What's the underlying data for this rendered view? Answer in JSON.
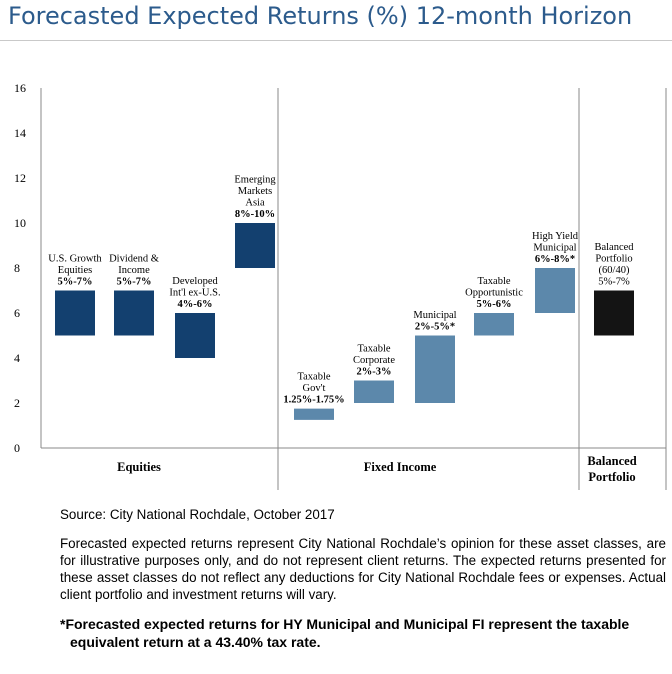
{
  "header": {
    "title": "Forecasted Expected Returns (%) 12-month Horizon"
  },
  "chart_data": {
    "type": "bar",
    "subtype": "floating-range",
    "ylim": [
      0,
      16
    ],
    "yticks": [
      0,
      2,
      4,
      6,
      8,
      10,
      12,
      14,
      16
    ],
    "xlabel": "",
    "ylabel": "",
    "grid": false,
    "groups": [
      {
        "name": "Equities",
        "bars": [
          0,
          1,
          2,
          3
        ]
      },
      {
        "name": "Fixed Income",
        "bars": [
          4,
          5,
          6,
          7,
          8
        ]
      },
      {
        "name": "Balanced Portfolio",
        "bars": [
          9
        ]
      }
    ],
    "bars": [
      {
        "label": [
          "U.S. Growth",
          "Equities"
        ],
        "range": "5%-7%",
        "low": 5,
        "high": 7,
        "color": "#13406f"
      },
      {
        "label": [
          "Dividend &",
          "Income"
        ],
        "range": "5%-7%",
        "low": 5,
        "high": 7,
        "color": "#13406f"
      },
      {
        "label": [
          "Developed",
          "Int'l ex-U.S."
        ],
        "range": "4%-6%",
        "low": 4,
        "high": 6,
        "color": "#13406f"
      },
      {
        "label": [
          "Emerging",
          "Markets",
          "Asia"
        ],
        "range": "8%-10%",
        "low": 8,
        "high": 10,
        "color": "#13406f"
      },
      {
        "label": [
          "Taxable",
          "Gov't"
        ],
        "range": "1.25%-1.75%",
        "low": 1.25,
        "high": 1.75,
        "color": "#5c88ab"
      },
      {
        "label": [
          "Taxable",
          "Corporate"
        ],
        "range": "2%-3%",
        "low": 2,
        "high": 3,
        "color": "#5c88ab"
      },
      {
        "label": [
          "Municipal"
        ],
        "range": "2%-5%*",
        "low": 2,
        "high": 5,
        "color": "#5c88ab"
      },
      {
        "label": [
          "Taxable",
          "Opportunistic"
        ],
        "range": "5%-6%",
        "low": 5,
        "high": 6,
        "color": "#5c88ab"
      },
      {
        "label": [
          "High Yield",
          "Municipal"
        ],
        "range": "6%-8%*",
        "low": 6,
        "high": 8,
        "color": "#5c88ab"
      },
      {
        "label": [
          "Balanced",
          "Portfolio",
          "(60/40)"
        ],
        "range": "5%-7%",
        "low": 5,
        "high": 7,
        "color": "#141414",
        "range_bold": false
      }
    ]
  },
  "notes": {
    "source": "Source: City National Rochdale, October 2017",
    "disclaimer": "Forecasted expected returns represent City National Rochdale’s opinion for these asset classes, are for illustrative purposes only, and do not represent client returns. The expected returns presented for these asset classes do not reflect any deductions for City National Rochdale fees or expenses. Actual client portfolio and investment returns will vary.",
    "footnote": "*Forecasted expected returns for HY Municipal and Municipal FI represent the taxable equivalent return at a 43.40% tax rate."
  }
}
